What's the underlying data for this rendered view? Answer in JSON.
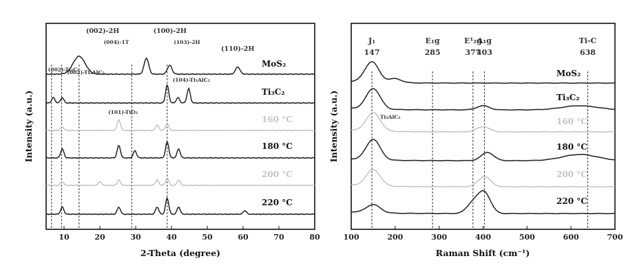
{
  "chart_data": [
    {
      "type": "line",
      "xlabel": "2-Theta (degree)",
      "ylabel": "Intensity (a.u.)",
      "xlim": [
        5,
        80
      ],
      "x_ticks": [
        "10",
        "20",
        "30",
        "40",
        "50",
        "60",
        "70",
        "80"
      ],
      "grid": false,
      "series": [
        {
          "name": "MoS₂",
          "color": "#222222",
          "peaks": [
            [
              14.2,
              1.0
            ],
            [
              33.0,
              0.9
            ],
            [
              39.5,
              0.5
            ],
            [
              58.5,
              0.4
            ]
          ]
        },
        {
          "name": "Ti₃C₂",
          "color": "#222222",
          "peaks": [
            [
              7.0,
              0.3
            ],
            [
              9.5,
              0.3
            ],
            [
              38.8,
              1.0
            ],
            [
              41.8,
              0.3
            ],
            [
              44.8,
              0.8
            ]
          ]
        },
        {
          "name": "160 °C",
          "color": "#bbbbbb",
          "peaks": [
            [
              9.5,
              0.2
            ],
            [
              25.3,
              0.6
            ],
            [
              36.0,
              0.3
            ],
            [
              38.8,
              0.4
            ]
          ]
        },
        {
          "name": "180 °C",
          "color": "#222222",
          "peaks": [
            [
              9.5,
              0.5
            ],
            [
              25.3,
              0.7
            ],
            [
              29.8,
              0.4
            ],
            [
              38.8,
              0.9
            ],
            [
              42.0,
              0.5
            ]
          ]
        },
        {
          "name": "200 °C",
          "color": "#bbbbbb",
          "peaks": [
            [
              9.5,
              0.2
            ],
            [
              20.0,
              0.2
            ],
            [
              25.3,
              0.3
            ],
            [
              36.0,
              0.3
            ],
            [
              38.8,
              0.4
            ],
            [
              42.0,
              0.3
            ]
          ]
        },
        {
          "name": "220 °C",
          "color": "#222222",
          "peaks": [
            [
              9.5,
              0.4
            ],
            [
              25.3,
              0.4
            ],
            [
              36.0,
              0.4
            ],
            [
              38.8,
              0.9
            ],
            [
              42.0,
              0.4
            ],
            [
              60.5,
              0.2
            ]
          ]
        }
      ],
      "ref_lines_x": [
        6.5,
        9.3,
        14.2,
        28.9,
        38.8
      ],
      "annotations": [
        {
          "text": "(002)-2H",
          "x": 14.2
        },
        {
          "text": "(004)-1T",
          "x": 28.9
        },
        {
          "text": "(100)-2H",
          "x": 33.0
        },
        {
          "text": "(103)-2H",
          "x": 39.5
        },
        {
          "text": "(110)-2H",
          "x": 58.5
        },
        {
          "text": "(002)-Ti₃C₂",
          "x": 6.5
        },
        {
          "text": "(002)-Ti₃AlC₂",
          "x": 9.3
        },
        {
          "text": "(104)-Ti₃AlC₂",
          "x": 38.8
        },
        {
          "text": "(101)-TiO₂",
          "x": 25.3
        }
      ]
    },
    {
      "type": "line",
      "xlabel": "Raman Shift (cm⁻¹)",
      "ylabel": "Intensity (a.u.)",
      "xlim": [
        100,
        700
      ],
      "x_ticks": [
        "100",
        "200",
        "300",
        "400",
        "500",
        "600",
        "700"
      ],
      "grid": false,
      "series": [
        {
          "name": "MoS₂",
          "color": "#222222",
          "peaks": [
            [
              147,
              1.0
            ],
            [
              200,
              0.2
            ]
          ]
        },
        {
          "name": "Ti₃C₂",
          "color": "#222222",
          "peaks": [
            [
              150,
              1.0
            ],
            [
              400,
              0.2
            ],
            [
              620,
              0.2
            ]
          ]
        },
        {
          "name": "160 °C",
          "color": "#bbbbbb",
          "peaks": [
            [
              150,
              0.9
            ],
            [
              400,
              0.25
            ]
          ]
        },
        {
          "name": "180 °C",
          "color": "#222222",
          "peaks": [
            [
              150,
              1.0
            ],
            [
              410,
              0.4
            ],
            [
              620,
              0.3
            ]
          ]
        },
        {
          "name": "200 °C",
          "color": "#bbbbbb",
          "peaks": [
            [
              150,
              0.8
            ],
            [
              403,
              0.5
            ]
          ]
        },
        {
          "name": "220 °C",
          "color": "#222222",
          "peaks": [
            [
              150,
              0.4
            ],
            [
              377,
              0.5
            ],
            [
              403,
              1.0
            ]
          ]
        }
      ],
      "ref_lines_x": [
        147,
        285,
        377,
        403,
        638
      ],
      "annotations": [
        {
          "text": "J₁",
          "value": "147",
          "x": 147
        },
        {
          "text": "E₁g",
          "value": "285",
          "x": 285
        },
        {
          "text": "E¹₂g",
          "value": "377",
          "x": 377
        },
        {
          "text": "A₁g",
          "value": "403",
          "x": 403
        },
        {
          "text": "Ti-C",
          "value": "638",
          "x": 638
        },
        {
          "text": "Ti₃AlC₂",
          "x": 150
        }
      ]
    }
  ]
}
